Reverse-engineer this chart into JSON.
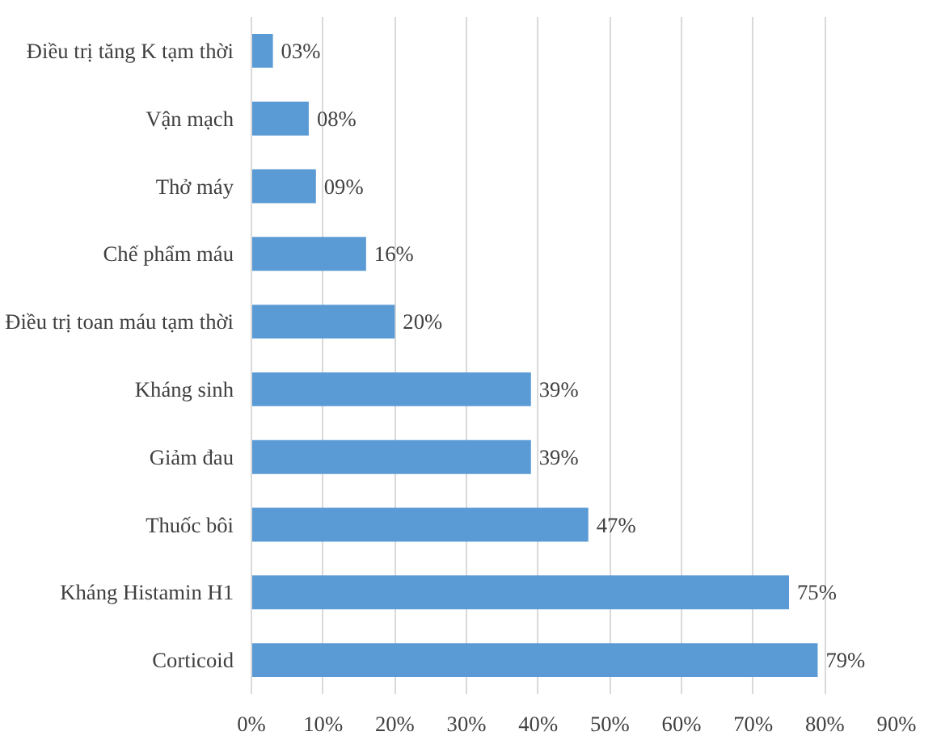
{
  "chart_data": {
    "type": "bar",
    "orientation": "horizontal",
    "categories": [
      "Điều trị tăng K tạm thời",
      "Vận mạch",
      "Thở máy",
      "Chế phẩm máu",
      "Điều trị toan máu tạm thời",
      "Kháng sinh",
      "Giảm đau",
      "Thuốc bôi",
      "Kháng Histamin H1",
      "Corticoid"
    ],
    "series": [
      {
        "color": "#5b9bd5",
        "values": [
          3,
          8,
          9,
          16,
          20,
          39,
          39,
          47,
          75,
          79
        ],
        "value_labels": [
          "03%",
          "08%",
          "09%",
          "16%",
          "20%",
          "39%",
          "39%",
          "47%",
          "75%",
          "79%"
        ]
      }
    ],
    "xlim": [
      0,
      90
    ],
    "xticks": [
      {
        "value": 0,
        "label": "0%"
      },
      {
        "value": 10,
        "label": "10%"
      },
      {
        "value": 20,
        "label": "20%"
      },
      {
        "value": 30,
        "label": "30%"
      },
      {
        "value": 40,
        "label": "40%"
      },
      {
        "value": 50,
        "label": "50%"
      },
      {
        "value": 60,
        "label": "60%"
      },
      {
        "value": 70,
        "label": "70%"
      },
      {
        "value": 80,
        "label": "80%"
      },
      {
        "value": 90,
        "label": "90%"
      }
    ],
    "grid": "x"
  }
}
